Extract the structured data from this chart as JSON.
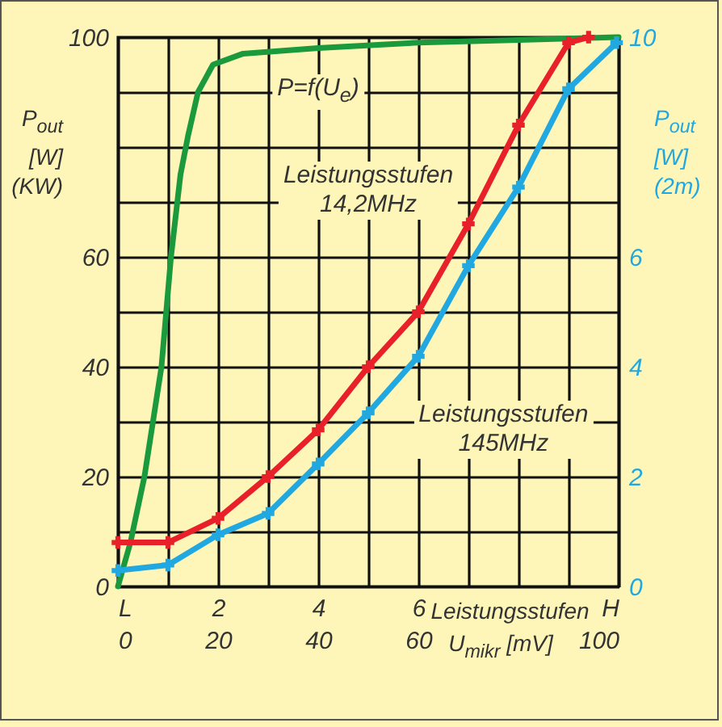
{
  "chart_data": {
    "type": "line",
    "xlabel": "Leistungsstufen",
    "x2label": "U$_{mikr}$ [mV]",
    "ylabel": "P$_{out}$\n[W]\n(KW)",
    "y2label": "P$_{out}$\n[W]\n(2m)",
    "xlim": [
      0,
      10
    ],
    "xticks": [
      {
        "value": 0,
        "label": "L"
      },
      {
        "value": 1,
        "label": null
      },
      2,
      {
        "value": 3,
        "label": null
      },
      4,
      {
        "value": 5,
        "label": null
      },
      6,
      {
        "value": 7,
        "label": null
      },
      {
        "value": 8,
        "label": null
      },
      {
        "value": 9,
        "label": null
      },
      {
        "value": 10,
        "label": "H"
      }
    ],
    "x2lim": [
      0,
      100
    ],
    "x2ticks": [
      0,
      20,
      40,
      60,
      100
    ],
    "ylim": [
      0,
      100
    ],
    "yticks": [
      0,
      {
        "value": 10,
        "label": null
      },
      20,
      {
        "value": 30,
        "label": null
      },
      40,
      {
        "value": 50,
        "label": null
      },
      60,
      {
        "value": 70,
        "label": null
      },
      {
        "value": 80,
        "label": null
      },
      {
        "value": 90,
        "label": null
      },
      100
    ],
    "y2lim": [
      0,
      10
    ],
    "y2ticks": [
      0,
      2,
      4,
      6,
      10
    ],
    "grid": true,
    "line_style": "solid",
    "series": [
      {
        "color": "#1a9a3c",
        "marker": "none",
        "x": [
          0,
          0.25,
          0.53,
          0.87,
          1.06,
          1.25,
          1.4,
          1.6,
          1.9,
          2.5,
          4,
          6,
          8,
          10
        ],
        "values": [
          0,
          8,
          20,
          40,
          60,
          75,
          82,
          90,
          95,
          97,
          98,
          99,
          99.5,
          100
        ]
      },
      {
        "color": "#e8202a",
        "marker": "cross",
        "x": [
          0,
          1,
          2,
          3,
          4,
          5,
          6,
          7,
          8,
          9,
          9.4
        ],
        "values": [
          8,
          8,
          12.4,
          20,
          28.5,
          40,
          50,
          66,
          84,
          99,
          100
        ]
      },
      {
        "color": "#22a8e0",
        "marker": "cross",
        "axis": "y2",
        "x": [
          0,
          1,
          2,
          3,
          4,
          5,
          6,
          7,
          8,
          9,
          9.96
        ],
        "values": [
          0.29,
          0.39,
          0.94,
          1.33,
          2.23,
          3.16,
          4.19,
          5.84,
          7.27,
          9.06,
          9.9
        ]
      }
    ],
    "annotations": [
      "P=f(U$_{e}$)",
      "Leistungsstufen\n14,2MHz",
      "Leistungsstufen\n145MHz"
    ]
  }
}
